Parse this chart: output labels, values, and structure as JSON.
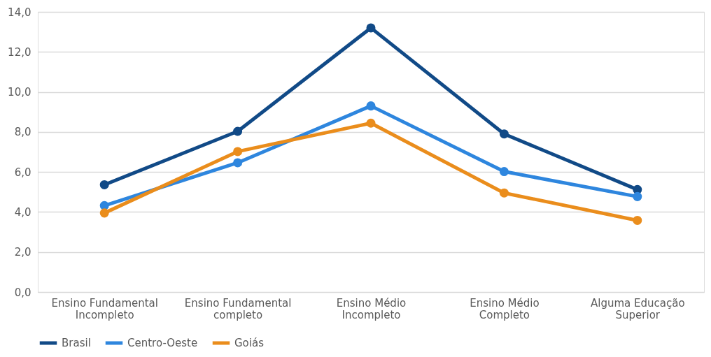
{
  "chart_data": {
    "type": "line",
    "categories": [
      "Ensino Fundamental Incompleto",
      "Ensino Fundamental completo",
      "Ensino Médio Incompleto",
      "Ensino Médio Completo",
      "Alguma Educação Superior"
    ],
    "series": [
      {
        "name": "Brasil",
        "color": "#114a87",
        "values": [
          5.36,
          8.03,
          13.2,
          7.9,
          5.12
        ]
      },
      {
        "name": "Centro-Oeste",
        "color": "#2e86de",
        "values": [
          4.32,
          6.46,
          9.3,
          6.02,
          4.77
        ]
      },
      {
        "name": "Goiás",
        "color": "#ea8d1c",
        "values": [
          3.95,
          7.02,
          8.44,
          4.95,
          3.58
        ]
      }
    ],
    "ylim": [
      0,
      14
    ],
    "yticks": [
      {
        "value": 0,
        "label": "0,0"
      },
      {
        "value": 2,
        "label": "2,0"
      },
      {
        "value": 4,
        "label": "4,0"
      },
      {
        "value": 6,
        "label": "6,0"
      },
      {
        "value": 8,
        "label": "8,0"
      },
      {
        "value": 10,
        "label": "10,0"
      },
      {
        "value": 12,
        "label": "12,0"
      },
      {
        "value": 14,
        "label": "14,0"
      }
    ],
    "grid": "y",
    "legend": "bottom",
    "marker": "circle",
    "line_style": "solid"
  }
}
